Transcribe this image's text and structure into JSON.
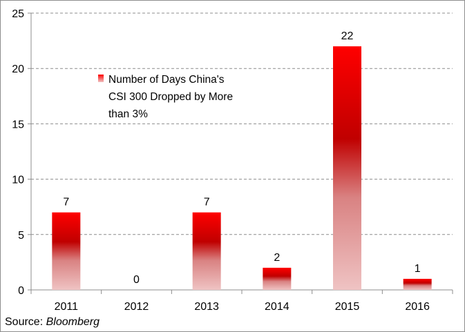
{
  "chart_data": {
    "type": "bar",
    "categories": [
      "2011",
      "2012",
      "2013",
      "2014",
      "2015",
      "2016"
    ],
    "series": [
      {
        "name": "Number of Days China's CSI 300 Dropped by More than 3%",
        "values": [
          7,
          0,
          7,
          2,
          22,
          1
        ]
      }
    ],
    "data_labels": [
      "7",
      "0",
      "7",
      "2",
      "22",
      "1"
    ],
    "ylim": [
      0,
      25
    ],
    "yticks": [
      0,
      5,
      10,
      15,
      20,
      25
    ],
    "grid": "horizontal dashed",
    "legend": {
      "placement": "upper-left",
      "lines": [
        "Number of Days China's",
        "CSI 300 Dropped by More",
        "than 3%"
      ]
    },
    "colors": {
      "bar_top": "#ff0000",
      "bar_mid": "#c00000",
      "bar_bottom": "#efc3c3"
    }
  },
  "source": {
    "prefix": "Source: ",
    "name": "Bloomberg"
  }
}
